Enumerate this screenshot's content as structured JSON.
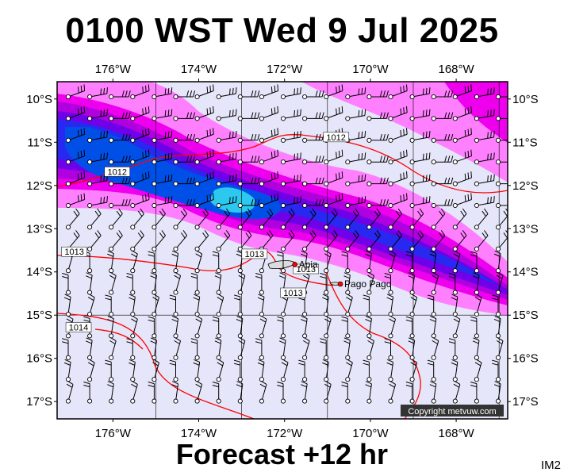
{
  "title": "0100 WST Wed 9 Jul 2025",
  "footer": "Forecast +12 hr",
  "corner_label": "IM2",
  "copyright": "Copyright metvuw.com",
  "map": {
    "lon_range": [
      -177.3,
      -166.8
    ],
    "lat_range": [
      -17.4,
      -9.6
    ],
    "lon_ticks": [
      {
        "value": -176,
        "label": "176°W"
      },
      {
        "value": -174,
        "label": "174°W"
      },
      {
        "value": -172,
        "label": "172°W"
      },
      {
        "value": -170,
        "label": "170°W"
      },
      {
        "value": -168,
        "label": "168°W"
      }
    ],
    "lat_ticks": [
      {
        "value": -10,
        "label": "10°S"
      },
      {
        "value": -11,
        "label": "11°S"
      },
      {
        "value": -12,
        "label": "12°S"
      },
      {
        "value": -13,
        "label": "13°S"
      },
      {
        "value": -14,
        "label": "14°S"
      },
      {
        "value": -15,
        "label": "15°S"
      },
      {
        "value": -16,
        "label": "16°S"
      },
      {
        "value": -17,
        "label": "17°S"
      }
    ],
    "places": [
      {
        "name": "Apia",
        "lon": -171.76,
        "lat": -13.83
      },
      {
        "name": "Pago Pago",
        "lon": -170.7,
        "lat": -14.28
      }
    ],
    "isobar_labels": [
      {
        "text": "1012",
        "lon": -175.9,
        "lat": -11.7
      },
      {
        "text": "1012",
        "lon": -170.8,
        "lat": -10.9
      },
      {
        "text": "1013",
        "lon": -176.9,
        "lat": -13.55
      },
      {
        "text": "1013",
        "lon": -172.7,
        "lat": -13.6
      },
      {
        "text": "1013",
        "lon": -171.5,
        "lat": -13.95
      },
      {
        "text": "1013",
        "lon": -171.8,
        "lat": -14.5
      },
      {
        "text": "1014",
        "lon": -176.8,
        "lat": -15.3
      }
    ]
  },
  "colors": {
    "background": "#e6e6fa",
    "wind_bands": [
      "#ff80ff",
      "#ee00ee",
      "#b000e0",
      "#7000e8",
      "#2828f0",
      "#0050e8",
      "#2cc8ee"
    ],
    "isobar": "#ff0000",
    "grid": "#000000"
  }
}
